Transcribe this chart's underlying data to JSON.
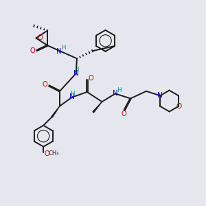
{
  "bg_color": "#e6e6ee",
  "bond_color": "#1a1a1a",
  "oxygen_color": "#cc0000",
  "nitrogen_color": "#0000cc",
  "hydrogen_color": "#008b8b",
  "figsize": [
    3.0,
    3.0
  ],
  "dpi": 100,
  "xlim": [
    0,
    10
  ],
  "ylim": [
    0,
    10
  ]
}
